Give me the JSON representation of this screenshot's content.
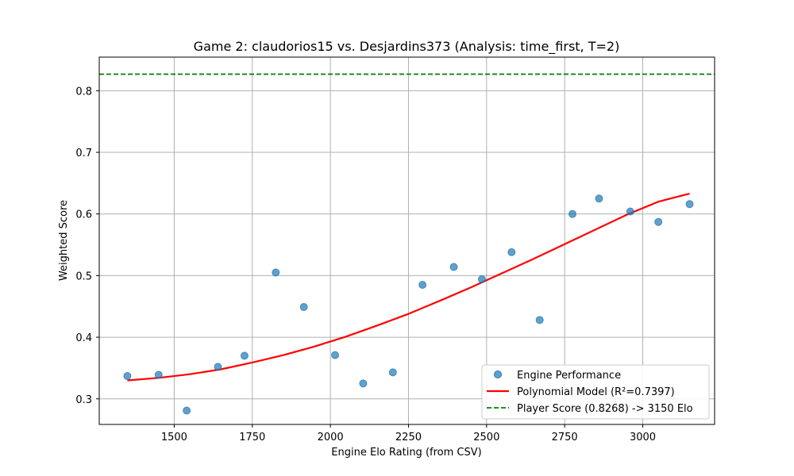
{
  "chart_data": {
    "type": "scatter",
    "title": "Game 2: claudorios15 vs. Desjardins373 (Analysis: time_first, T=2)",
    "xlabel": "Engine Elo Rating (from CSV)",
    "ylabel": "Weighted Score",
    "xlim": [
      1260,
      3230
    ],
    "ylim": [
      0.2585,
      0.8545
    ],
    "xticks": [
      1500,
      1750,
      2000,
      2250,
      2500,
      2750,
      3000
    ],
    "yticks": [
      0.3,
      0.4,
      0.5,
      0.6,
      0.7,
      0.8
    ],
    "ytick_labels": [
      "0.3",
      "0.4",
      "0.5",
      "0.6",
      "0.7",
      "0.8"
    ],
    "grid": true,
    "legend_position": "lower-right",
    "series": [
      {
        "name": "Engine Performance",
        "kind": "scatter",
        "color": "#1f77b4",
        "x": [
          1350,
          1450,
          1540,
          1640,
          1725,
          1825,
          1915,
          2015,
          2105,
          2200,
          2295,
          2395,
          2485,
          2580,
          2670,
          2775,
          2860,
          2960,
          3050,
          3150
        ],
        "y": [
          0.337,
          0.339,
          0.281,
          0.352,
          0.37,
          0.505,
          0.449,
          0.371,
          0.325,
          0.343,
          0.485,
          0.514,
          0.494,
          0.538,
          0.428,
          0.6,
          0.625,
          0.604,
          0.587,
          0.616
        ]
      },
      {
        "name": "Polynomial Model (R²=0.7397)",
        "kind": "line",
        "color": "#ff0000",
        "x": [
          1350,
          1450,
          1550,
          1650,
          1750,
          1850,
          1950,
          2050,
          2150,
          2250,
          2350,
          2450,
          2550,
          2650,
          2750,
          2850,
          2950,
          3050,
          3150
        ],
        "y": [
          0.33,
          0.334,
          0.34,
          0.348,
          0.359,
          0.371,
          0.385,
          0.401,
          0.419,
          0.438,
          0.459,
          0.481,
          0.504,
          0.527,
          0.551,
          0.575,
          0.599,
          0.62,
          0.633
        ]
      },
      {
        "name": "Player Score (0.8268) -> 3150 Elo",
        "kind": "hline",
        "color": "#008000",
        "y": 0.8268
      }
    ]
  }
}
